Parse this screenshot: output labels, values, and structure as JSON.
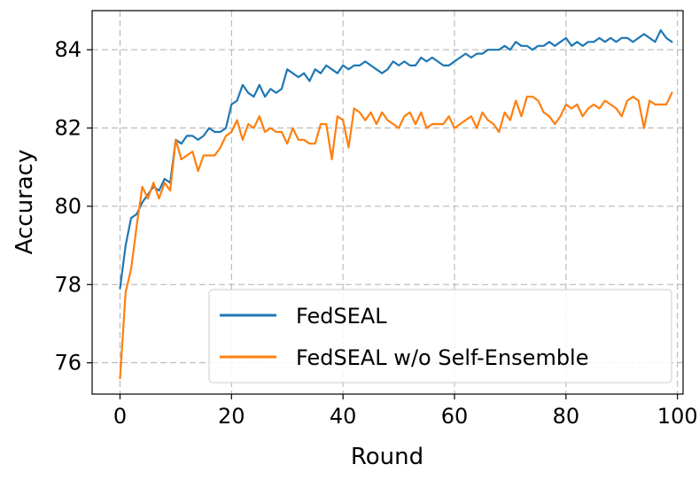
{
  "chart_data": {
    "type": "line",
    "xlabel": "Round",
    "ylabel": "Accuracy",
    "xlim": [
      -5,
      101
    ],
    "ylim": [
      75.2,
      85.0
    ],
    "xticks": [
      0,
      20,
      40,
      60,
      80,
      100
    ],
    "yticks": [
      76,
      78,
      80,
      82,
      84
    ],
    "grid": true,
    "legend_position": "lower-right",
    "series": [
      {
        "name": "FedSEAL",
        "color": "#1f77b4",
        "x": [
          0,
          1,
          2,
          3,
          4,
          5,
          6,
          7,
          8,
          9,
          10,
          11,
          12,
          13,
          14,
          15,
          16,
          17,
          18,
          19,
          20,
          21,
          22,
          23,
          24,
          25,
          26,
          27,
          28,
          29,
          30,
          31,
          32,
          33,
          34,
          35,
          36,
          37,
          38,
          39,
          40,
          41,
          42,
          43,
          44,
          45,
          46,
          47,
          48,
          49,
          50,
          51,
          52,
          53,
          54,
          55,
          56,
          57,
          58,
          59,
          60,
          61,
          62,
          63,
          64,
          65,
          66,
          67,
          68,
          69,
          70,
          71,
          72,
          73,
          74,
          75,
          76,
          77,
          78,
          79,
          80,
          81,
          82,
          83,
          84,
          85,
          86,
          87,
          88,
          89,
          90,
          91,
          92,
          93,
          94,
          95,
          96,
          97,
          98,
          99
        ],
        "values": [
          77.9,
          79.0,
          79.7,
          79.8,
          80.1,
          80.3,
          80.5,
          80.4,
          80.7,
          80.6,
          81.7,
          81.6,
          81.8,
          81.8,
          81.7,
          81.8,
          82.0,
          81.9,
          81.9,
          82.0,
          82.6,
          82.7,
          83.1,
          82.9,
          82.8,
          83.1,
          82.8,
          83.0,
          82.9,
          83.0,
          83.5,
          83.4,
          83.3,
          83.4,
          83.2,
          83.5,
          83.4,
          83.6,
          83.5,
          83.4,
          83.6,
          83.5,
          83.6,
          83.6,
          83.7,
          83.6,
          83.5,
          83.4,
          83.5,
          83.7,
          83.6,
          83.7,
          83.6,
          83.6,
          83.8,
          83.7,
          83.8,
          83.7,
          83.6,
          83.6,
          83.7,
          83.8,
          83.9,
          83.8,
          83.9,
          83.9,
          84.0,
          84.0,
          84.0,
          84.1,
          84.0,
          84.2,
          84.1,
          84.1,
          84.0,
          84.1,
          84.1,
          84.2,
          84.1,
          84.2,
          84.3,
          84.1,
          84.2,
          84.1,
          84.2,
          84.2,
          84.3,
          84.2,
          84.3,
          84.2,
          84.3,
          84.3,
          84.2,
          84.3,
          84.4,
          84.3,
          84.2,
          84.5,
          84.3,
          84.2
        ]
      },
      {
        "name": "FedSEAL w/o Self-Ensemble",
        "color": "#ff7f0e",
        "x": [
          0,
          1,
          2,
          3,
          4,
          5,
          6,
          7,
          8,
          9,
          10,
          11,
          12,
          13,
          14,
          15,
          16,
          17,
          18,
          19,
          20,
          21,
          22,
          23,
          24,
          25,
          26,
          27,
          28,
          29,
          30,
          31,
          32,
          33,
          34,
          35,
          36,
          37,
          38,
          39,
          40,
          41,
          42,
          43,
          44,
          45,
          46,
          47,
          48,
          49,
          50,
          51,
          52,
          53,
          54,
          55,
          56,
          57,
          58,
          59,
          60,
          61,
          62,
          63,
          64,
          65,
          66,
          67,
          68,
          69,
          70,
          71,
          72,
          73,
          74,
          75,
          76,
          77,
          78,
          79,
          80,
          81,
          82,
          83,
          84,
          85,
          86,
          87,
          88,
          89,
          90,
          91,
          92,
          93,
          94,
          95,
          96,
          97,
          98,
          99
        ],
        "values": [
          75.6,
          77.8,
          78.4,
          79.5,
          80.5,
          80.2,
          80.6,
          80.2,
          80.6,
          80.4,
          81.7,
          81.2,
          81.3,
          81.4,
          80.9,
          81.3,
          81.3,
          81.3,
          81.5,
          81.8,
          81.9,
          82.2,
          81.7,
          82.1,
          82.0,
          82.3,
          81.9,
          82.0,
          81.9,
          81.9,
          81.6,
          82.0,
          81.7,
          81.7,
          81.6,
          81.6,
          82.1,
          82.1,
          81.2,
          82.3,
          82.2,
          81.5,
          82.5,
          82.4,
          82.2,
          82.4,
          82.1,
          82.4,
          82.2,
          82.1,
          82.0,
          82.3,
          82.4,
          82.1,
          82.4,
          82.0,
          82.1,
          82.1,
          82.1,
          82.3,
          82.0,
          82.1,
          82.2,
          82.3,
          82.0,
          82.4,
          82.2,
          82.1,
          81.9,
          82.4,
          82.2,
          82.7,
          82.3,
          82.8,
          82.8,
          82.7,
          82.4,
          82.3,
          82.1,
          82.3,
          82.6,
          82.5,
          82.6,
          82.3,
          82.5,
          82.6,
          82.5,
          82.7,
          82.6,
          82.5,
          82.3,
          82.7,
          82.8,
          82.7,
          82.0,
          82.7,
          82.6,
          82.6,
          82.6,
          82.9
        ]
      }
    ]
  }
}
